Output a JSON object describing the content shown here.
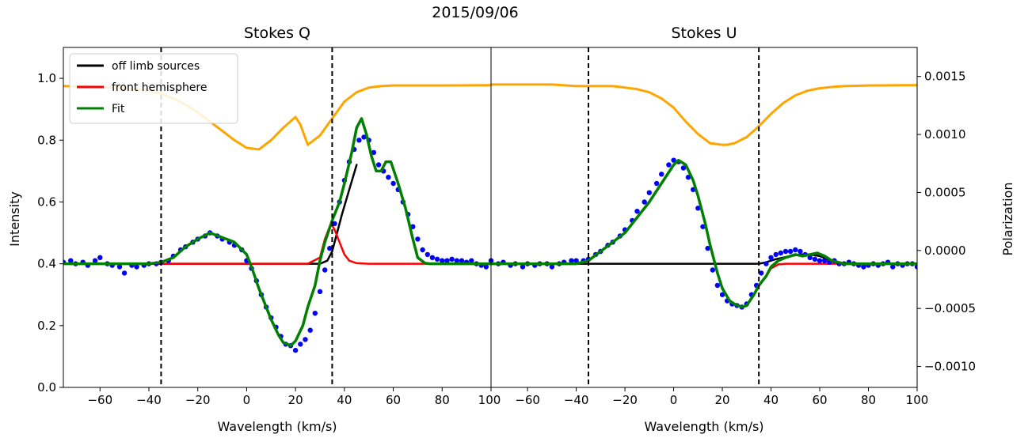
{
  "chart_data": {
    "type": "line",
    "suptitle": "2015/09/06",
    "ylabel_left": "Intensity",
    "ylabel_right": "Polarization",
    "ylim_left": [
      0.0,
      1.1
    ],
    "ylim_right": [
      -0.00118,
      0.00175
    ],
    "yticks_left": [
      0.0,
      0.2,
      0.4,
      0.6,
      0.8,
      1.0
    ],
    "yticklabels_left": [
      "0.0",
      "0.2",
      "0.4",
      "0.6",
      "0.8",
      "1.0"
    ],
    "yticks_right": [
      -0.001,
      -0.0005,
      0.0,
      0.0005,
      0.001,
      0.0015
    ],
    "yticklabels_right": [
      "−0.0010",
      "−0.0005",
      "0.0000",
      "0.0005",
      "0.0010",
      "0.0015"
    ],
    "legend": {
      "location": "upper-left",
      "entries": [
        {
          "label": "off limb sources",
          "color": "#000000"
        },
        {
          "label": "front hemisphere",
          "color": "#ff0000"
        },
        {
          "label": "Fit",
          "color": "#008000"
        }
      ]
    },
    "colors": {
      "intensity": "#ffa500",
      "data_points": "#0000ff",
      "off_limb": "#000000",
      "front": "#ff0000",
      "fit": "#008000"
    },
    "panels": [
      {
        "title": "Stokes Q",
        "xlabel": "Wavelength (km/s)",
        "xlim": [
          -75,
          100
        ],
        "xticks": [
          -60,
          -40,
          -20,
          0,
          20,
          40,
          60,
          80,
          100
        ],
        "xticklabels": [
          "−60",
          "−40",
          "−20",
          "0",
          "20",
          "40",
          "60",
          "80",
          "100"
        ],
        "vlines": [
          -35,
          35
        ],
        "intensity": {
          "x": [
            -75,
            -60,
            -50,
            -40,
            -35,
            -30,
            -25,
            -20,
            -15,
            -10,
            -5,
            0,
            5,
            10,
            15,
            20,
            22,
            25,
            30,
            35,
            40,
            45,
            50,
            55,
            60,
            65,
            70,
            80,
            100
          ],
          "y": [
            0.975,
            0.972,
            0.968,
            0.96,
            0.95,
            0.935,
            0.915,
            0.89,
            0.86,
            0.83,
            0.8,
            0.775,
            0.77,
            0.8,
            0.84,
            0.875,
            0.85,
            0.785,
            0.815,
            0.87,
            0.925,
            0.955,
            0.97,
            0.975,
            0.977,
            0.977,
            0.977,
            0.977,
            0.978
          ]
        },
        "data_points": {
          "x": [
            -75,
            -72,
            -70,
            -67,
            -65,
            -62,
            -60,
            -57,
            -55,
            -52,
            -50,
            -47,
            -45,
            -42,
            -40,
            -37,
            -35,
            -32,
            -30,
            -27,
            -25,
            -22,
            -20,
            -17,
            -15,
            -12,
            -10,
            -7,
            -5,
            -2,
            0,
            2,
            4,
            6,
            8,
            10,
            12,
            14,
            16,
            18,
            20,
            22,
            24,
            26,
            28,
            30,
            32,
            34,
            36,
            38,
            40,
            42,
            44,
            46,
            48,
            50,
            52,
            54,
            56,
            58,
            60,
            62,
            64,
            66,
            68,
            70,
            72,
            74,
            76,
            78,
            80,
            82,
            84,
            86,
            88,
            90,
            92,
            94,
            96,
            98,
            100
          ],
          "y": [
            0.405,
            0.41,
            0.4,
            0.405,
            0.395,
            0.41,
            0.42,
            0.4,
            0.395,
            0.39,
            0.37,
            0.395,
            0.39,
            0.395,
            0.4,
            0.4,
            0.405,
            0.41,
            0.425,
            0.445,
            0.455,
            0.47,
            0.48,
            0.49,
            0.5,
            0.49,
            0.48,
            0.47,
            0.46,
            0.445,
            0.41,
            0.385,
            0.345,
            0.3,
            0.26,
            0.225,
            0.195,
            0.165,
            0.14,
            0.135,
            0.12,
            0.14,
            0.155,
            0.185,
            0.24,
            0.31,
            0.38,
            0.45,
            0.53,
            0.6,
            0.67,
            0.73,
            0.77,
            0.8,
            0.81,
            0.8,
            0.76,
            0.72,
            0.7,
            0.68,
            0.66,
            0.64,
            0.6,
            0.56,
            0.52,
            0.48,
            0.445,
            0.43,
            0.42,
            0.415,
            0.41,
            0.41,
            0.415,
            0.41,
            0.41,
            0.405,
            0.41,
            0.4,
            0.395,
            0.39,
            0.41
          ]
        },
        "off_limb": {
          "x": [
            -75,
            25,
            30,
            33,
            35,
            37,
            39,
            42,
            45
          ],
          "y": [
            0.4,
            0.4,
            0.4,
            0.41,
            0.44,
            0.5,
            0.56,
            0.64,
            0.72
          ]
        },
        "front": {
          "x": [
            -75,
            25,
            30,
            32,
            34,
            35,
            36,
            38,
            40,
            42,
            45,
            50,
            100
          ],
          "y": [
            0.4,
            0.4,
            0.42,
            0.48,
            0.52,
            0.525,
            0.51,
            0.47,
            0.43,
            0.41,
            0.402,
            0.4,
            0.4
          ]
        },
        "fit": {
          "x": [
            -75,
            -40,
            -35,
            -30,
            -25,
            -20,
            -15,
            -10,
            -5,
            0,
            2,
            5,
            8,
            10,
            13,
            15,
            18,
            20,
            23,
            25,
            28,
            30,
            32,
            35,
            38,
            40,
            43,
            45,
            47,
            49,
            51,
            53,
            55,
            57,
            59,
            62,
            65,
            68,
            70,
            73,
            75,
            100
          ],
          "y": [
            0.4,
            0.4,
            0.405,
            0.42,
            0.455,
            0.48,
            0.5,
            0.485,
            0.47,
            0.43,
            0.39,
            0.32,
            0.26,
            0.22,
            0.17,
            0.145,
            0.135,
            0.15,
            0.2,
            0.26,
            0.33,
            0.41,
            0.47,
            0.54,
            0.6,
            0.66,
            0.76,
            0.84,
            0.87,
            0.82,
            0.75,
            0.7,
            0.7,
            0.73,
            0.73,
            0.66,
            0.58,
            0.48,
            0.42,
            0.402,
            0.4,
            0.4
          ]
        }
      },
      {
        "title": "Stokes U",
        "xlabel": "Wavelength (km/s)",
        "xlim": [
          -75,
          100
        ],
        "xticks": [
          -60,
          -40,
          -20,
          0,
          20,
          40,
          60,
          80,
          100
        ],
        "xticklabels": [
          "−60",
          "−40",
          "−20",
          "0",
          "20",
          "40",
          "60",
          "80",
          "100"
        ],
        "vlines": [
          -35,
          35
        ],
        "intensity": {
          "x": [
            -75,
            -60,
            -50,
            -40,
            -35,
            -30,
            -25,
            -20,
            -15,
            -10,
            -5,
            0,
            5,
            10,
            15,
            20,
            22,
            25,
            30,
            35,
            40,
            45,
            50,
            55,
            60,
            65,
            70,
            80,
            100
          ],
          "y": [
            0.98,
            0.98,
            0.98,
            0.975,
            0.975,
            0.975,
            0.975,
            0.97,
            0.965,
            0.955,
            0.935,
            0.905,
            0.86,
            0.82,
            0.79,
            0.785,
            0.785,
            0.79,
            0.81,
            0.845,
            0.885,
            0.92,
            0.945,
            0.96,
            0.968,
            0.972,
            0.975,
            0.977,
            0.978
          ]
        },
        "data_points": {
          "x": [
            -75,
            -72,
            -70,
            -67,
            -65,
            -62,
            -60,
            -57,
            -55,
            -52,
            -50,
            -47,
            -45,
            -42,
            -40,
            -37,
            -35,
            -32,
            -30,
            -27,
            -25,
            -22,
            -20,
            -17,
            -15,
            -12,
            -10,
            -7,
            -5,
            -2,
            0,
            2,
            4,
            6,
            8,
            10,
            12,
            14,
            16,
            18,
            20,
            22,
            24,
            26,
            28,
            30,
            32,
            34,
            36,
            38,
            40,
            42,
            44,
            46,
            48,
            50,
            52,
            54,
            56,
            58,
            60,
            62,
            64,
            66,
            68,
            70,
            72,
            74,
            76,
            78,
            80,
            82,
            84,
            86,
            88,
            90,
            92,
            94,
            96,
            98,
            100
          ],
          "y": [
            0.41,
            0.4,
            0.405,
            0.395,
            0.4,
            0.39,
            0.4,
            0.395,
            0.4,
            0.4,
            0.39,
            0.4,
            0.405,
            0.41,
            0.41,
            0.41,
            0.415,
            0.43,
            0.44,
            0.46,
            0.47,
            0.49,
            0.51,
            0.54,
            0.57,
            0.6,
            0.63,
            0.66,
            0.69,
            0.72,
            0.735,
            0.73,
            0.71,
            0.68,
            0.64,
            0.58,
            0.52,
            0.45,
            0.38,
            0.33,
            0.3,
            0.28,
            0.27,
            0.265,
            0.26,
            0.27,
            0.3,
            0.33,
            0.37,
            0.4,
            0.42,
            0.43,
            0.435,
            0.44,
            0.44,
            0.445,
            0.44,
            0.43,
            0.42,
            0.415,
            0.41,
            0.41,
            0.405,
            0.41,
            0.4,
            0.4,
            0.405,
            0.4,
            0.395,
            0.39,
            0.395,
            0.4,
            0.395,
            0.4,
            0.405,
            0.39,
            0.4,
            0.395,
            0.4,
            0.4,
            0.39
          ]
        },
        "off_limb": {
          "x": [
            -75,
            35,
            38,
            40,
            42,
            45,
            48,
            52,
            56,
            60,
            63,
            66,
            70,
            100
          ],
          "y": [
            0.4,
            0.4,
            0.405,
            0.41,
            0.415,
            0.42,
            0.425,
            0.43,
            0.43,
            0.425,
            0.415,
            0.405,
            0.4,
            0.4
          ]
        },
        "front": {
          "x": [
            35,
            38,
            40,
            43,
            46,
            50,
            55,
            60,
            65,
            70,
            100
          ],
          "y": [
            0.33,
            0.36,
            0.385,
            0.398,
            0.4,
            0.4,
            0.4,
            0.4,
            0.4,
            0.4,
            0.4
          ]
        },
        "fit": {
          "x": [
            -75,
            -40,
            -35,
            -30,
            -25,
            -20,
            -15,
            -10,
            -5,
            0,
            2,
            5,
            8,
            10,
            13,
            15,
            18,
            20,
            23,
            25,
            28,
            30,
            33,
            35,
            38,
            40,
            43,
            46,
            50,
            53,
            56,
            59,
            62,
            65,
            70,
            100
          ],
          "y": [
            0.4,
            0.4,
            0.41,
            0.44,
            0.47,
            0.5,
            0.55,
            0.6,
            0.66,
            0.72,
            0.735,
            0.72,
            0.67,
            0.62,
            0.53,
            0.46,
            0.37,
            0.32,
            0.28,
            0.27,
            0.26,
            0.265,
            0.3,
            0.33,
            0.36,
            0.39,
            0.41,
            0.42,
            0.43,
            0.425,
            0.43,
            0.435,
            0.425,
            0.41,
            0.4,
            0.4
          ]
        }
      }
    ]
  }
}
